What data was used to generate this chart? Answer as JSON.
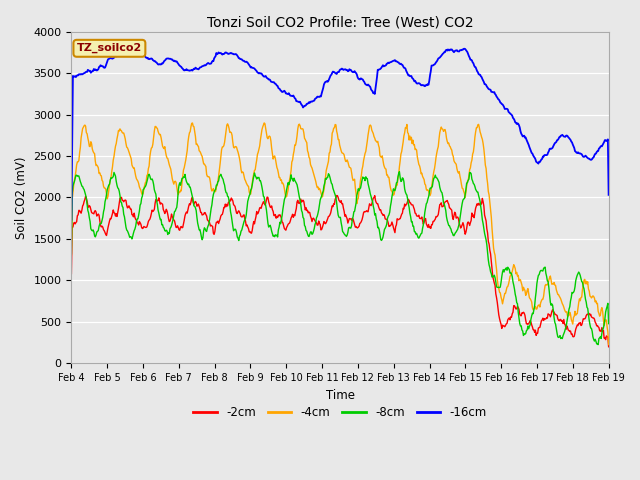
{
  "title": "Tonzi Soil CO2 Profile: Tree (West) CO2",
  "ylabel": "Soil CO2 (mV)",
  "xlabel": "Time",
  "legend_label": "TZ_soilco2",
  "ylim": [
    0,
    4000
  ],
  "fig_facecolor": "#e8e8e8",
  "ax_facecolor": "#e8e8e8",
  "series_labels": [
    "-2cm",
    "-4cm",
    "-8cm",
    "-16cm"
  ],
  "series_colors": [
    "#ff0000",
    "#ffa500",
    "#00cc00",
    "#0000ff"
  ],
  "xtick_labels": [
    "Feb 4",
    "Feb 5",
    "Feb 6",
    "Feb 7",
    "Feb 8",
    "Feb 9",
    "Feb 10",
    "Feb 11",
    "Feb 12",
    "Feb 13",
    "Feb 14",
    "Feb 15",
    "Feb 16",
    "Feb 17",
    "Feb 18",
    "Feb 19"
  ],
  "ytick_values": [
    0,
    500,
    1000,
    1500,
    2000,
    2500,
    3000,
    3500,
    4000
  ]
}
